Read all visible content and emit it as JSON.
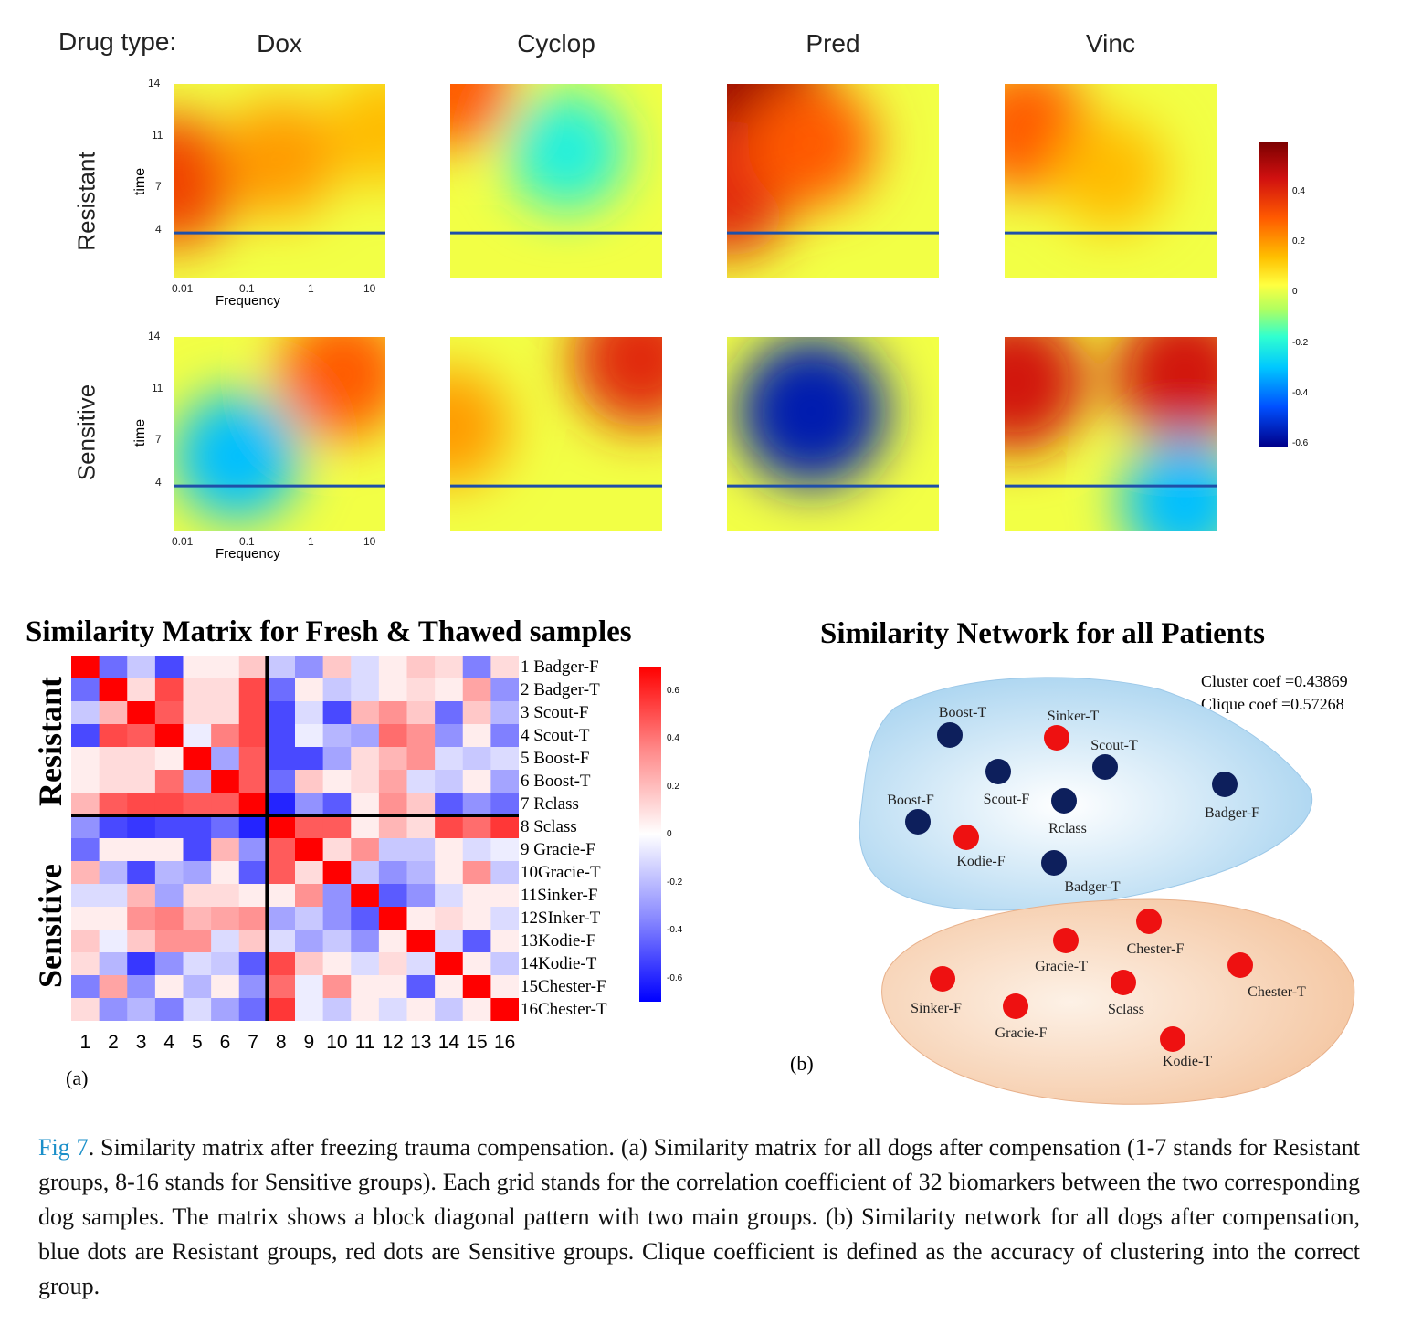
{
  "top_panel": {
    "drug_type_label": "Drug type:",
    "drugs": [
      "Dox",
      "Cyclop",
      "Pred",
      "Vinc"
    ],
    "rows": [
      "Resistant",
      "Sensitive"
    ],
    "y_axis_label": "time",
    "y_ticks": [
      "14",
      "11",
      "7",
      "4"
    ],
    "x_axis_label": "Frequency",
    "x_ticks": [
      "0.01",
      "0.1",
      "1",
      "10"
    ],
    "colorbar_ticks": [
      "0.4",
      "0.2",
      "0",
      "-0.2",
      "-0.4",
      "-0.6"
    ],
    "heatmaps": [
      {
        "drug": "Dox",
        "row": "Resistant",
        "spots": [
          {
            "f": 0.0,
            "t": 7.5,
            "v": 0.35
          },
          {
            "f": 0.5,
            "t": 9,
            "v": 0.2
          },
          {
            "f": 1,
            "t": 11,
            "v": 0.15
          }
        ]
      },
      {
        "drug": "Cyclop",
        "row": "Resistant",
        "spots": [
          {
            "f": 0.0,
            "t": 14,
            "v": 0.3
          },
          {
            "f": 0.55,
            "t": 9.5,
            "v": -0.2
          }
        ]
      },
      {
        "drug": "Pred",
        "row": "Resistant",
        "spots": [
          {
            "f": 0.1,
            "t": 14,
            "v": 0.55
          },
          {
            "f": 0.0,
            "t": 7,
            "v": 0.4
          },
          {
            "f": 0.4,
            "t": 10,
            "v": 0.3
          }
        ]
      },
      {
        "drug": "Vinc",
        "row": "Resistant",
        "spots": [
          {
            "f": 0.1,
            "t": 11,
            "v": 0.3
          },
          {
            "f": 0.5,
            "t": 8,
            "v": 0.15
          }
        ]
      },
      {
        "drug": "Dox",
        "row": "Sensitive",
        "spots": [
          {
            "f": 0.8,
            "t": 11.5,
            "v": 0.3
          },
          {
            "f": 0.3,
            "t": 6,
            "v": -0.3
          }
        ]
      },
      {
        "drug": "Cyclop",
        "row": "Sensitive",
        "spots": [
          {
            "f": 0.9,
            "t": 12.5,
            "v": 0.4
          },
          {
            "f": 0.0,
            "t": 8,
            "v": 0.2
          }
        ]
      },
      {
        "drug": "Pred",
        "row": "Sensitive",
        "spots": [
          {
            "f": 0.4,
            "t": 9,
            "v": -0.55
          }
        ]
      },
      {
        "drug": "Vinc",
        "row": "Sensitive",
        "spots": [
          {
            "f": 0.05,
            "t": 11,
            "v": 0.45
          },
          {
            "f": 0.85,
            "t": 11.5,
            "v": 0.45
          },
          {
            "f": 0.85,
            "t": 3,
            "v": -0.3
          }
        ]
      }
    ]
  },
  "matrix": {
    "title": "Similarity Matrix for Fresh & Thawed samples",
    "side_labels": [
      "Resistant",
      "Sensitive"
    ],
    "row_labels": [
      "1 Badger-F",
      "2 Badger-T",
      "3 Scout-F",
      "4 Scout-T",
      "5 Boost-F",
      "6 Boost-T",
      "7 Rclass",
      "8 Sclass",
      "9 Gracie-F",
      "10Gracie-T",
      "11Sinker-F",
      "12SInker-T",
      "13Kodie-F",
      "14Kodie-T",
      "15Chester-F",
      "16Chester-T"
    ],
    "col_labels": [
      "1",
      "2",
      "3",
      "4",
      "5",
      "6",
      "7",
      "8",
      "9",
      "10",
      "11",
      "12",
      "13",
      "14",
      "15",
      "16"
    ],
    "colorbar_ticks": [
      "0.6",
      "0.4",
      "0.2",
      "0",
      "-0.2",
      "-0.4",
      "-0.6"
    ],
    "panel_label": "(a)"
  },
  "chart_data": {
    "type": "heatmap",
    "title": "Similarity Matrix for Fresh & Thawed samples",
    "rows": [
      "1 Badger-F",
      "2 Badger-T",
      "3 Scout-F",
      "4 Scout-T",
      "5 Boost-F",
      "6 Boost-T",
      "7 Rclass",
      "8 Sclass",
      "9 Gracie-F",
      "10Gracie-T",
      "11Sinker-F",
      "12SInker-T",
      "13Kodie-F",
      "14Kodie-T",
      "15Chester-F",
      "16Chester-T"
    ],
    "columns": [
      "1",
      "2",
      "3",
      "4",
      "5",
      "6",
      "7",
      "8",
      "9",
      "10",
      "11",
      "12",
      "13",
      "14",
      "15",
      "16"
    ],
    "value_range": [
      -0.7,
      0.7
    ],
    "values": [
      [
        0.7,
        -0.4,
        -0.15,
        -0.5,
        0.05,
        0.05,
        0.15,
        -0.15,
        -0.3,
        0.15,
        -0.1,
        0.05,
        0.15,
        0.1,
        -0.35,
        0.1
      ],
      [
        -0.4,
        0.7,
        0.1,
        0.5,
        0.1,
        0.1,
        0.5,
        -0.4,
        0.05,
        -0.15,
        -0.1,
        0.05,
        0.1,
        0.05,
        0.25,
        -0.3
      ],
      [
        -0.15,
        0.2,
        0.7,
        0.45,
        0.1,
        0.1,
        0.5,
        -0.5,
        -0.1,
        -0.5,
        0.2,
        0.3,
        0.15,
        -0.4,
        0.15,
        -0.2
      ],
      [
        -0.5,
        0.5,
        0.45,
        0.7,
        -0.05,
        0.35,
        0.5,
        -0.5,
        -0.05,
        -0.2,
        -0.25,
        0.4,
        0.3,
        -0.3,
        0.05,
        -0.35
      ],
      [
        0.05,
        0.1,
        0.1,
        0.05,
        0.7,
        -0.25,
        0.45,
        -0.5,
        -0.5,
        -0.25,
        0.1,
        0.2,
        0.3,
        -0.1,
        -0.15,
        -0.1
      ],
      [
        0.05,
        0.1,
        0.1,
        0.4,
        -0.25,
        0.7,
        0.45,
        -0.4,
        0.15,
        0.05,
        0.1,
        0.25,
        -0.1,
        -0.15,
        0.05,
        -0.25
      ],
      [
        0.2,
        0.45,
        0.5,
        0.5,
        0.45,
        0.45,
        0.7,
        -0.6,
        -0.3,
        -0.45,
        0.05,
        0.3,
        0.15,
        -0.45,
        -0.3,
        -0.4
      ],
      [
        -0.3,
        -0.5,
        -0.55,
        -0.5,
        -0.5,
        -0.4,
        -0.6,
        0.7,
        0.45,
        0.45,
        0.05,
        0.2,
        0.1,
        0.5,
        0.4,
        0.55
      ],
      [
        -0.4,
        0.05,
        0.05,
        0.05,
        -0.5,
        0.2,
        -0.3,
        0.45,
        0.7,
        0.1,
        0.3,
        -0.15,
        -0.15,
        0.05,
        -0.1,
        -0.05
      ],
      [
        0.2,
        -0.2,
        -0.5,
        -0.2,
        -0.25,
        0.05,
        -0.45,
        0.45,
        0.1,
        0.7,
        -0.15,
        -0.3,
        -0.2,
        0.05,
        0.3,
        -0.15
      ],
      [
        -0.1,
        -0.1,
        0.2,
        -0.25,
        0.1,
        0.1,
        0.05,
        0.05,
        0.3,
        -0.3,
        0.7,
        -0.45,
        -0.3,
        -0.1,
        0.05,
        0.05
      ],
      [
        0.05,
        0.05,
        0.3,
        0.35,
        0.2,
        0.25,
        0.3,
        -0.25,
        -0.15,
        -0.3,
        -0.45,
        0.7,
        0.05,
        0.1,
        0.05,
        -0.1
      ],
      [
        0.15,
        -0.05,
        0.15,
        0.3,
        0.3,
        -0.1,
        0.15,
        -0.1,
        -0.25,
        -0.15,
        -0.3,
        0.05,
        0.7,
        -0.1,
        -0.45,
        0.05
      ],
      [
        0.1,
        -0.2,
        -0.55,
        -0.3,
        -0.1,
        -0.15,
        -0.45,
        0.5,
        0.15,
        0.05,
        -0.1,
        0.1,
        -0.1,
        0.7,
        0.05,
        -0.15
      ],
      [
        -0.35,
        0.25,
        -0.3,
        0.05,
        -0.2,
        0.05,
        -0.3,
        0.4,
        -0.05,
        0.3,
        0.05,
        0.05,
        -0.45,
        0.05,
        0.7,
        0.05
      ],
      [
        0.1,
        -0.3,
        -0.2,
        -0.35,
        -0.1,
        -0.25,
        -0.4,
        0.55,
        -0.05,
        -0.15,
        0.05,
        -0.1,
        0.05,
        -0.15,
        0.05,
        0.7
      ]
    ]
  },
  "network": {
    "title": "Similarity Network for all Patients",
    "cluster_coef": "Cluster coef =0.43869",
    "clique_coef": "Clique coef =0.57268",
    "panel_label": "(b)",
    "colors": {
      "resistant": "#0d1f5c",
      "sensitive": "#ee1111",
      "resistant_bg": "#cde6f7",
      "sensitive_bg": "#f8dcc8"
    },
    "nodes": [
      {
        "label": "Boost-T",
        "group": "resistant"
      },
      {
        "label": "Sinker-T",
        "group": "sensitive"
      },
      {
        "label": "Scout-T",
        "group": "resistant"
      },
      {
        "label": "Scout-F",
        "group": "resistant"
      },
      {
        "label": "Rclass",
        "group": "resistant"
      },
      {
        "label": "Badger-F",
        "group": "resistant"
      },
      {
        "label": "Boost-F",
        "group": "resistant"
      },
      {
        "label": "Kodie-F",
        "group": "sensitive"
      },
      {
        "label": "Badger-T",
        "group": "resistant"
      },
      {
        "label": "Chester-F",
        "group": "sensitive"
      },
      {
        "label": "Gracie-T",
        "group": "sensitive"
      },
      {
        "label": "Chester-T",
        "group": "sensitive"
      },
      {
        "label": "Sinker-F",
        "group": "sensitive"
      },
      {
        "label": "Sclass",
        "group": "sensitive"
      },
      {
        "label": "Gracie-F",
        "group": "sensitive"
      },
      {
        "label": "Kodie-T",
        "group": "sensitive"
      }
    ]
  },
  "caption": {
    "fig_ref": "Fig 7",
    "text": ". Similarity matrix after freezing trauma compensation. (a) Similarity matrix for all dogs after compensation (1-7 stands for Resistant groups, 8-16 stands for Sensitive groups). Each grid stands for the correlation coefficient of 32 biomarkers between the two corresponding dog samples. The matrix shows a block diagonal pattern with two main groups. (b) Similarity network for all dogs after compensation, blue dots are Resistant groups, red dots are Sensitive groups. Clique coefficient is defined as the accuracy of clustering into the correct group."
  }
}
